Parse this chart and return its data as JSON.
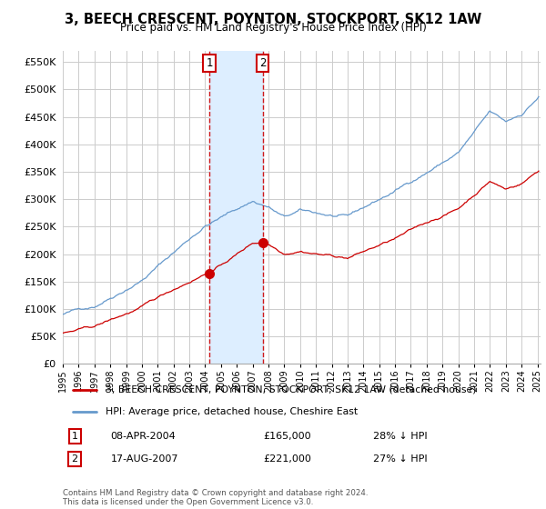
{
  "title": "3, BEECH CRESCENT, POYNTON, STOCKPORT, SK12 1AW",
  "subtitle": "Price paid vs. HM Land Registry's House Price Index (HPI)",
  "ylim": [
    0,
    570000
  ],
  "yticks": [
    0,
    50000,
    100000,
    150000,
    200000,
    250000,
    300000,
    350000,
    400000,
    450000,
    500000,
    550000
  ],
  "ytick_labels": [
    "£0",
    "£50K",
    "£100K",
    "£150K",
    "£200K",
    "£250K",
    "£300K",
    "£350K",
    "£400K",
    "£450K",
    "£500K",
    "£550K"
  ],
  "sale1_date": 2004.27,
  "sale1_price": 165000,
  "sale2_date": 2007.63,
  "sale2_price": 221000,
  "property_line_color": "#cc0000",
  "hpi_line_color": "#6699cc",
  "band_color": "#ddeeff",
  "sale_vline_color": "#cc0000",
  "legend_property_label": "3, BEECH CRESCENT, POYNTON, STOCKPORT, SK12 1AW (detached house)",
  "legend_hpi_label": "HPI: Average price, detached house, Cheshire East",
  "footer": "Contains HM Land Registry data © Crown copyright and database right 2024.\nThis data is licensed under the Open Government Licence v3.0.",
  "background_color": "#ffffff",
  "plot_bg_color": "#ffffff",
  "grid_color": "#cccccc"
}
